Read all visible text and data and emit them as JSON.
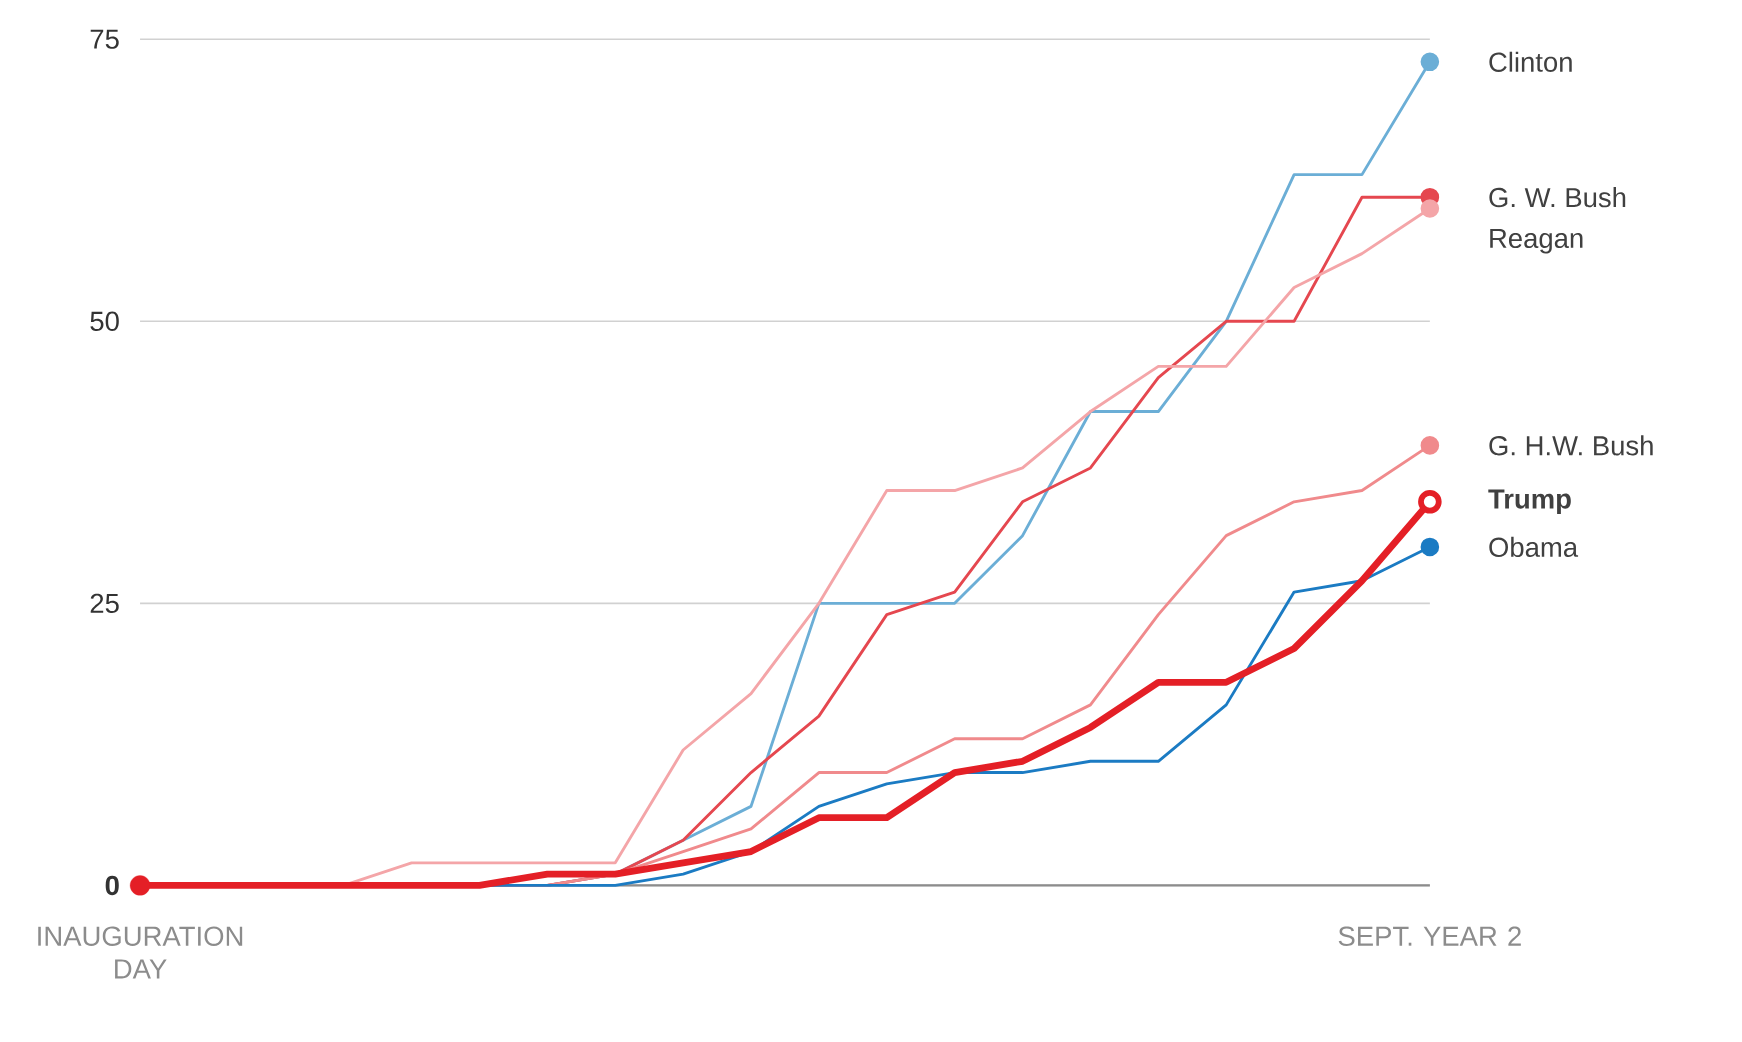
{
  "chart_data": {
    "type": "line",
    "categories": [
      "INAUGURATION DAY",
      null,
      null,
      null,
      null,
      null,
      null,
      null,
      null,
      null,
      null,
      null,
      null,
      null,
      null,
      null,
      null,
      null,
      null,
      "SEPT. YEAR 2"
    ],
    "ylim": [
      0,
      75
    ],
    "yticks": [
      {
        "value": 0,
        "label": "**0**"
      },
      25,
      50,
      75
    ],
    "grid": "y",
    "series": [
      {
        "name": "Clinton",
        "color": "#6baed6",
        "values": [
          null,
          null,
          null,
          null,
          null,
          0,
          0,
          1,
          4,
          7,
          25,
          25,
          25,
          31,
          42,
          42,
          50,
          63,
          63,
          73
        ]
      },
      {
        "name": "G. W. Bush",
        "color": "#e5474f",
        "values": [
          null,
          null,
          null,
          null,
          null,
          0,
          0,
          1,
          4,
          10,
          15,
          24,
          26,
          34,
          37,
          45,
          50,
          50,
          61,
          61
        ]
      },
      {
        "name": "Reagan",
        "color": "#f4a5a8",
        "values": [
          null,
          null,
          null,
          0,
          2,
          2,
          2,
          2,
          12,
          17,
          25,
          35,
          35,
          37,
          42,
          46,
          46,
          53,
          56,
          60
        ]
      },
      {
        "name": "G. H.W. Bush",
        "color": "#f08a8c",
        "values": [
          null,
          null,
          null,
          null,
          null,
          0,
          0,
          1,
          3,
          5,
          10,
          10,
          13,
          13,
          16,
          24,
          31,
          34,
          35,
          39
        ]
      },
      {
        "name": "Obama",
        "color": "#1b7bc3",
        "values": [
          null,
          null,
          null,
          null,
          null,
          0,
          0,
          0,
          1,
          3,
          7,
          9,
          10,
          10,
          11,
          11,
          16,
          26,
          27,
          30
        ]
      },
      {
        "name": "**Trump**",
        "color": "#e41f26",
        "values": [
          0,
          0,
          0,
          0,
          0,
          0,
          1,
          1,
          2,
          3,
          6,
          6,
          10,
          11,
          14,
          18,
          18,
          21,
          27,
          34
        ]
      }
    ]
  }
}
